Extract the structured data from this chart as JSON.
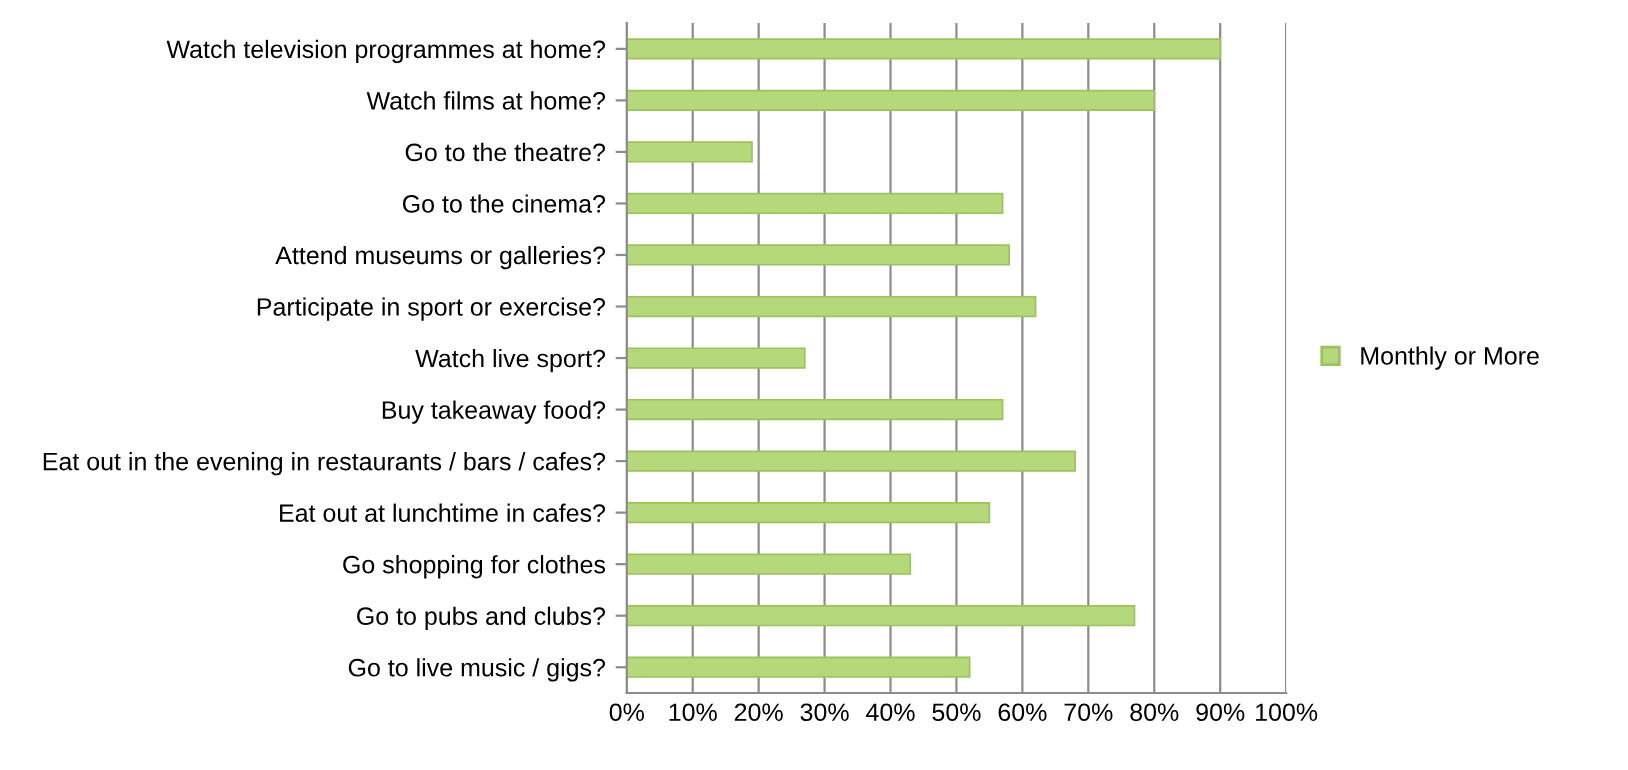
{
  "chart_data": {
    "type": "bar",
    "orientation": "horizontal",
    "categories": [
      "Watch television programmes at home?",
      "Watch films at home?",
      "Go to the theatre?",
      "Go to the cinema?",
      "Attend museums or galleries?",
      "Participate in sport or exercise?",
      "Watch live sport?",
      "Buy takeaway food?",
      "Eat out in the evening in restaurants / bars / cafes?",
      "Eat out at lunchtime in cafes?",
      "Go shopping for clothes",
      "Go to pubs and clubs?",
      "Go to live music / gigs?"
    ],
    "series": [
      {
        "name": "Monthly or More",
        "color": "#b5d97a",
        "values": [
          0.9,
          0.8,
          0.19,
          0.57,
          0.58,
          0.62,
          0.27,
          0.57,
          0.68,
          0.55,
          0.43,
          0.77,
          0.52
        ]
      }
    ],
    "xlim": [
      0,
      1
    ],
    "xticks": [
      {
        "value": 0,
        "label": "0%"
      },
      {
        "value": 0.1,
        "label": "10%"
      },
      {
        "value": 0.2,
        "label": "20%"
      },
      {
        "value": 0.3,
        "label": "30%"
      },
      {
        "value": 0.4,
        "label": "40%"
      },
      {
        "value": 0.5,
        "label": "50%"
      },
      {
        "value": 0.6,
        "label": "60%"
      },
      {
        "value": 0.7,
        "label": "70%"
      },
      {
        "value": 0.8,
        "label": "80%"
      },
      {
        "value": 0.9,
        "label": "90%"
      },
      {
        "value": 1,
        "label": "100%"
      }
    ],
    "grid": "x",
    "legend": "right"
  }
}
